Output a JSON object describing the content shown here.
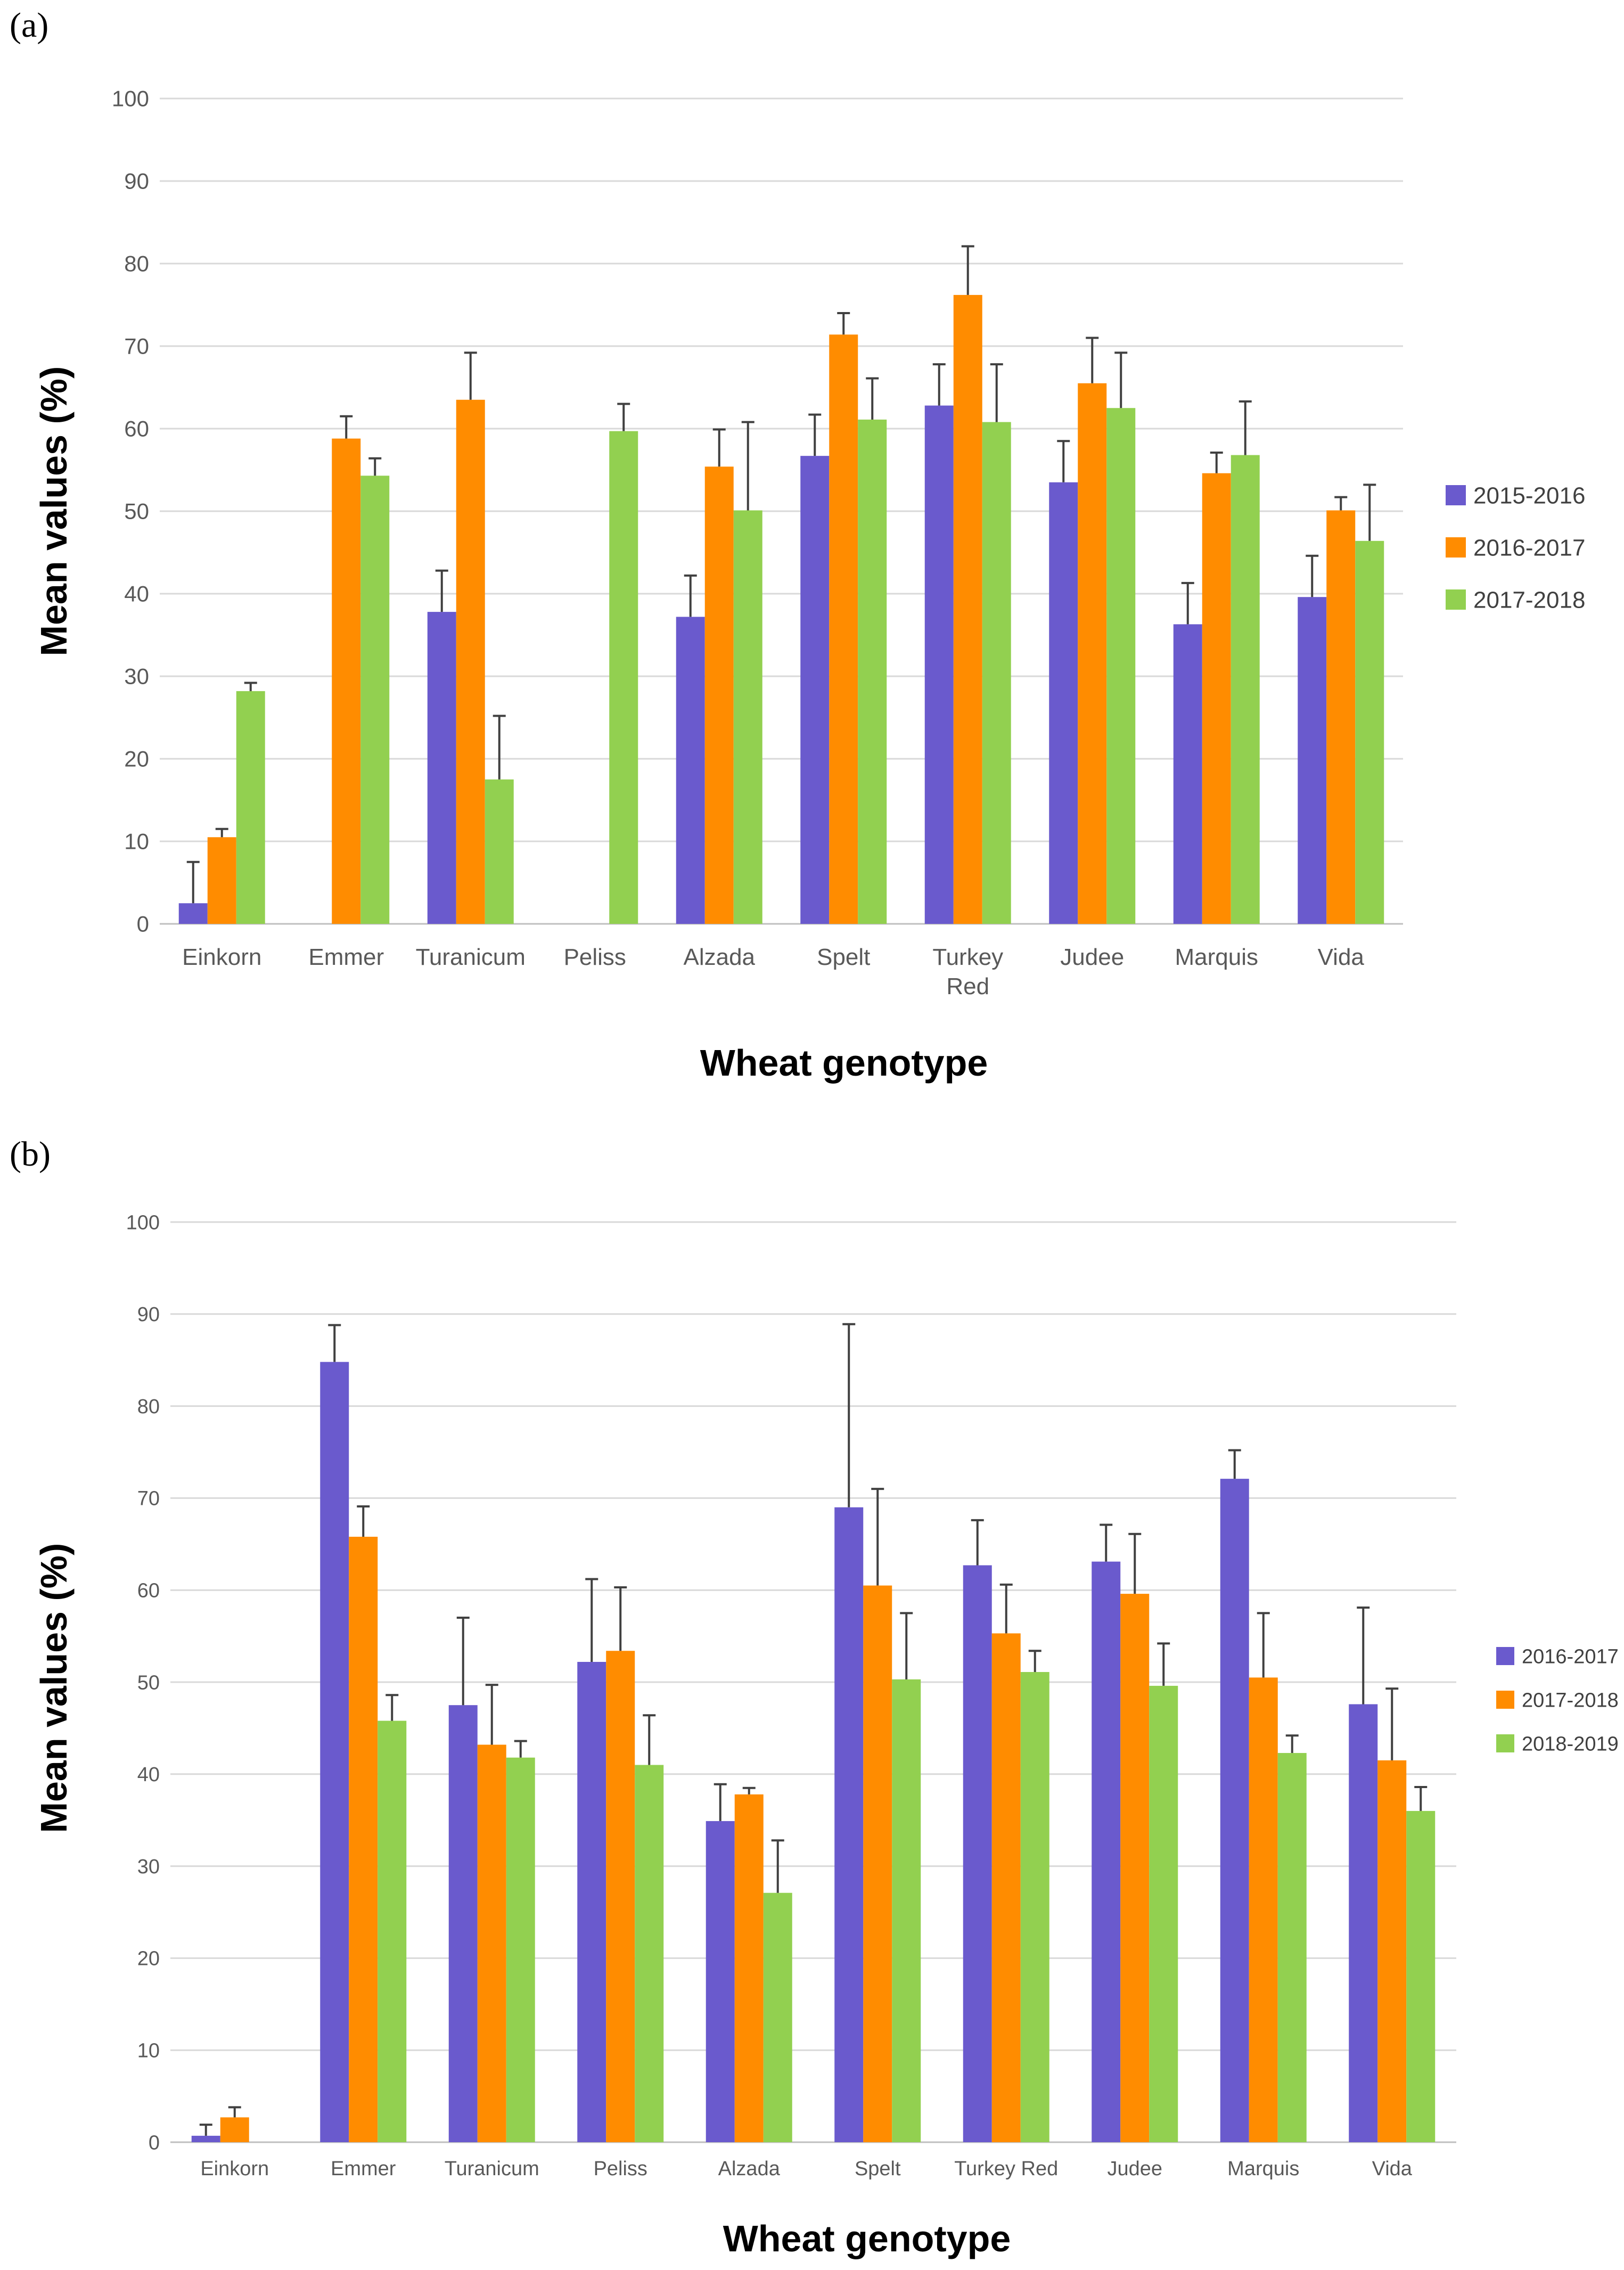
{
  "chart_data": [
    {
      "panel_label": "(a)",
      "type": "bar",
      "ylabel": "Mean values (%)",
      "xlabel": "Wheat genotype",
      "ylim": [
        0,
        100
      ],
      "yticks": [
        "0",
        "10",
        "20",
        "30",
        "40",
        "50",
        "60",
        "70",
        "80",
        "90",
        "100"
      ],
      "grid": true,
      "legend_position": "right",
      "categories": [
        "Einkorn",
        "Emmer",
        "Turanicum",
        "Peliss",
        "Alzada",
        "Spelt",
        "Turkey Red",
        "Judee",
        "Marquis",
        "Vida"
      ],
      "category_lines": [
        [
          "Einkorn"
        ],
        [
          "Emmer"
        ],
        [
          "Turanicum"
        ],
        [
          "Peliss"
        ],
        [
          "Alzada"
        ],
        [
          "Spelt"
        ],
        [
          "Turkey",
          "Red"
        ],
        [
          "Judee"
        ],
        [
          "Marquis"
        ],
        [
          "Vida"
        ]
      ],
      "series": [
        {
          "name": "2015-2016",
          "color": "#6A5ACD",
          "values": [
            2.5,
            null,
            37.8,
            null,
            37.2,
            56.7,
            62.8,
            53.5,
            36.3,
            39.6
          ],
          "errors": [
            5.0,
            null,
            5.0,
            null,
            5.0,
            5.0,
            5.0,
            5.0,
            5.0,
            5.0
          ]
        },
        {
          "name": "2016-2017",
          "color": "#FF8C00",
          "values": [
            10.5,
            58.8,
            63.5,
            null,
            55.4,
            71.4,
            76.2,
            65.5,
            54.6,
            50.1
          ],
          "errors": [
            1.0,
            2.7,
            5.7,
            null,
            4.5,
            2.6,
            5.9,
            5.5,
            2.5,
            1.6
          ]
        },
        {
          "name": "2017-2018",
          "color": "#92D050",
          "values": [
            28.2,
            54.3,
            17.5,
            59.7,
            50.1,
            61.1,
            60.8,
            62.5,
            56.8,
            46.4
          ],
          "errors": [
            1.0,
            2.1,
            7.7,
            3.3,
            10.7,
            5.0,
            7.0,
            6.7,
            6.5,
            6.8
          ]
        }
      ]
    },
    {
      "panel_label": "(b)",
      "type": "bar",
      "ylabel": "Mean values (%)",
      "xlabel": "Wheat genotype",
      "ylim": [
        0,
        100
      ],
      "yticks": [
        "0",
        "10",
        "20",
        "30",
        "40",
        "50",
        "60",
        "70",
        "80",
        "90",
        "100"
      ],
      "grid": true,
      "legend_position": "right",
      "categories": [
        "Einkorn",
        "Emmer",
        "Turanicum",
        "Peliss",
        "Alzada",
        "Spelt",
        "Turkey Red",
        "Judee",
        "Marquis",
        "Vida"
      ],
      "category_lines": [
        [
          "Einkorn"
        ],
        [
          "Emmer"
        ],
        [
          "Turanicum"
        ],
        [
          "Peliss"
        ],
        [
          "Alzada"
        ],
        [
          "Spelt"
        ],
        [
          "Turkey Red"
        ],
        [
          "Judee"
        ],
        [
          "Marquis"
        ],
        [
          "Vida"
        ]
      ],
      "series": [
        {
          "name": "2016-2017",
          "color": "#6A5ACD",
          "values": [
            0.7,
            84.8,
            47.5,
            52.2,
            34.9,
            69.0,
            62.7,
            63.1,
            72.1,
            47.6
          ],
          "errors": [
            1.2,
            4.0,
            9.5,
            9.0,
            4.0,
            19.9,
            4.9,
            4.0,
            3.1,
            10.5
          ]
        },
        {
          "name": "2017-2018",
          "color": "#FF8C00",
          "values": [
            2.7,
            65.8,
            43.2,
            53.4,
            37.8,
            60.5,
            55.3,
            59.6,
            50.5,
            41.5
          ],
          "errors": [
            1.1,
            3.3,
            6.5,
            6.9,
            0.7,
            10.5,
            5.3,
            6.5,
            7.0,
            7.8
          ]
        },
        {
          "name": "2018-2019",
          "color": "#92D050",
          "values": [
            null,
            45.8,
            41.8,
            41.0,
            27.1,
            50.3,
            51.1,
            49.6,
            42.3,
            36.0
          ],
          "errors": [
            null,
            2.8,
            1.8,
            5.4,
            5.7,
            7.2,
            2.3,
            4.6,
            1.9,
            2.6
          ]
        }
      ]
    }
  ]
}
